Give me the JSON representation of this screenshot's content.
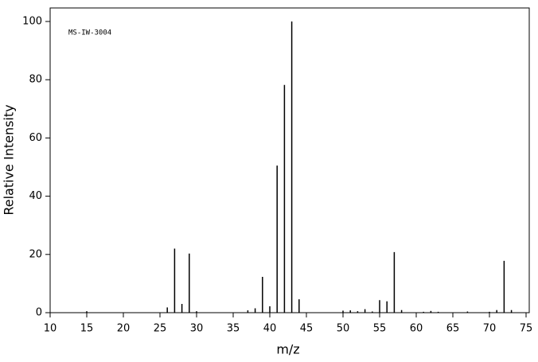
{
  "chart_data": {
    "type": "stick",
    "annotation": "MS-IW-3004",
    "xlabel": "m/z",
    "ylabel": "Relative Intensity",
    "x": [
      15,
      26,
      27,
      28,
      29,
      30,
      37,
      38,
      39,
      40,
      41,
      42,
      43,
      44,
      50,
      51,
      52,
      53,
      54,
      55,
      56,
      57,
      58,
      61,
      62,
      63,
      67,
      70,
      71,
      72,
      73
    ],
    "values": [
      0.5,
      1.8,
      22,
      3,
      20.3,
      0.5,
      0.8,
      1.5,
      12.3,
      2.2,
      50.5,
      78.2,
      100,
      4.6,
      0.7,
      0.8,
      0.5,
      1.2,
      0.4,
      4.3,
      3.9,
      20.8,
      0.9,
      0.3,
      0.6,
      0.3,
      0.4,
      0.3,
      0.9,
      17.8,
      0.9
    ],
    "color": "#000000",
    "xlim": [
      10,
      75
    ],
    "ylim": [
      0,
      100
    ],
    "xticks": [
      10,
      15,
      20,
      25,
      30,
      35,
      40,
      45,
      50,
      55,
      60,
      65,
      70,
      75
    ],
    "yticks": [
      0,
      20,
      40,
      60,
      80,
      100
    ],
    "grid": false
  }
}
